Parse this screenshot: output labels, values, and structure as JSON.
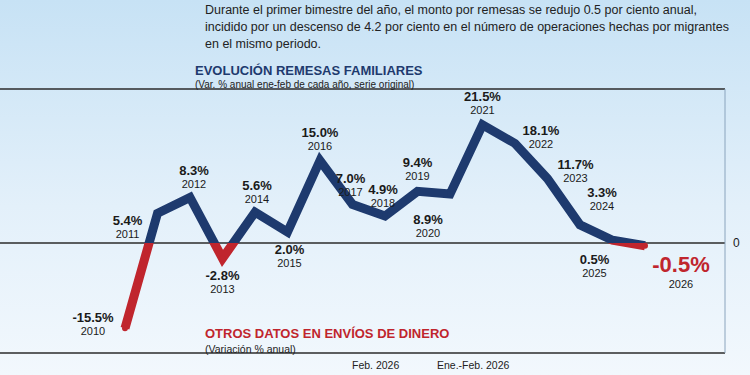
{
  "note": "Durante el primer bimestre del año, el monto por remesas se redujo 0.5 por ciento anual, incidido por un descenso de 4.2 por ciento en el número de operaciones hechas por migrantes en el mismo periodo.",
  "chart_data": {
    "type": "line",
    "title": "EVOLUCIÓN REMESAS FAMILIARES",
    "subtitle": "(Var. % anual ene-feb de cada año, serie original)",
    "categories": [
      "2010",
      "2011",
      "2012",
      "2013",
      "2014",
      "2015",
      "2016",
      "2017",
      "2018",
      "2019",
      "2020",
      "2021",
      "2022",
      "2023",
      "2024",
      "2025",
      "2026"
    ],
    "values": [
      -15.5,
      5.4,
      8.3,
      -2.8,
      5.6,
      2.0,
      15.0,
      7.0,
      4.9,
      9.4,
      8.9,
      21.5,
      18.1,
      11.7,
      3.3,
      0.5,
      -0.5
    ],
    "value_labels": [
      "-15.5%",
      "5.4%",
      "8.3%",
      "-2.8%",
      "5.6%",
      "2.0%",
      "15.0%",
      "7.0%",
      "4.9%",
      "9.4%",
      "8.9%",
      "21.5%",
      "18.1%",
      "11.7%",
      "3.3%",
      "0.5%",
      "-0.5%"
    ],
    "color": "#1e3a6e",
    "colors": [
      "#c0252d",
      "#1e3a6e",
      "#1e3a6e",
      "#c0252d",
      "#1e3a6e",
      "#1e3a6e",
      "#1e3a6e",
      "#1e3a6e",
      "#1e3a6e",
      "#1e3a6e",
      "#1e3a6e",
      "#1e3a6e",
      "#1e3a6e",
      "#1e3a6e",
      "#1e3a6e",
      "#1e3a6e",
      "#c0252d"
    ],
    "data_labels": true,
    "ylim": [
      -20,
      28
    ],
    "yticks": [
      0
    ],
    "grid": true,
    "tick_labels": "y"
  },
  "other_data": {
    "title": "OTROS DATOS EN ENVÍOS DE DINERO",
    "subtitle": "(Variación % anual)",
    "columns": [
      "Feb. 2026",
      "Ene.-Feb. 2026"
    ]
  }
}
